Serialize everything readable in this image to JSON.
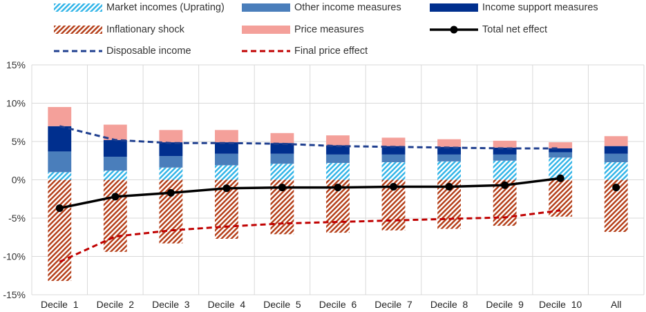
{
  "chart_data": {
    "type": "bar",
    "categories": [
      "Decile  1",
      "Decile  2",
      "Decile  3",
      "Decile  4",
      "Decile  5",
      "Decile  6",
      "Decile  7",
      "Decile  8",
      "Decile  9",
      "Decile  10",
      "All"
    ],
    "ylim": [
      -15,
      15
    ],
    "yticks": [
      -15,
      -10,
      -5,
      0,
      5,
      10,
      15
    ],
    "ytick_labels": [
      "-15%",
      "-10%",
      "-5%",
      "0%",
      "5%",
      "10%",
      "15%"
    ],
    "grid": true,
    "legend_position": "top",
    "stacked_series": [
      {
        "name": "Market incomes (Uprating)",
        "pattern": "hatch-light-blue",
        "color": "#33b5e8",
        "values": [
          1.0,
          1.2,
          1.6,
          1.9,
          2.1,
          2.2,
          2.3,
          2.4,
          2.5,
          2.9,
          2.3
        ]
      },
      {
        "name": "Other income measures",
        "color": "#4a7ebb",
        "values": [
          2.7,
          1.8,
          1.5,
          1.5,
          1.3,
          1.1,
          1.0,
          0.9,
          0.8,
          0.7,
          1.1
        ]
      },
      {
        "name": "Income support measures",
        "color": "#002f8e",
        "values": [
          3.3,
          2.2,
          1.8,
          1.5,
          1.4,
          1.2,
          1.1,
          1.0,
          0.9,
          0.5,
          1.0
        ]
      },
      {
        "name": "Inflationary shock",
        "pattern": "hatch-red",
        "color": "#b5401a",
        "values": [
          -13.2,
          -9.4,
          -8.3,
          -7.7,
          -7.1,
          -6.9,
          -6.6,
          -6.4,
          -6.0,
          -4.8,
          -6.8
        ]
      },
      {
        "name": "Price measures",
        "color": "#f4a09a",
        "values": [
          2.5,
          2.0,
          1.6,
          1.6,
          1.3,
          1.3,
          1.1,
          1.0,
          0.9,
          0.8,
          1.3
        ]
      }
    ],
    "line_series": [
      {
        "name": "Total net effect",
        "color": "#000000",
        "style": "solid-marker",
        "values": [
          -3.7,
          -2.2,
          -1.7,
          -1.1,
          -1.0,
          -1.0,
          -0.9,
          -0.9,
          -0.7,
          0.2,
          -1.0
        ]
      },
      {
        "name": "Disposable income",
        "color": "#1f3f8f",
        "style": "dashed",
        "values": [
          7.0,
          5.2,
          4.8,
          4.8,
          4.7,
          4.4,
          4.3,
          4.2,
          4.1,
          4.1,
          null
        ]
      },
      {
        "name": "Final price effect",
        "color": "#c00000",
        "style": "dashed",
        "values": [
          -10.7,
          -7.4,
          -6.6,
          -6.1,
          -5.7,
          -5.5,
          -5.3,
          -5.1,
          -4.9,
          -4.0,
          null
        ]
      }
    ],
    "legend": [
      "Market incomes (Uprating)",
      "Other income measures",
      "Income support measures",
      "Inflationary shock",
      "Price measures",
      "Total net effect",
      "Disposable income",
      "Final price effect"
    ]
  }
}
